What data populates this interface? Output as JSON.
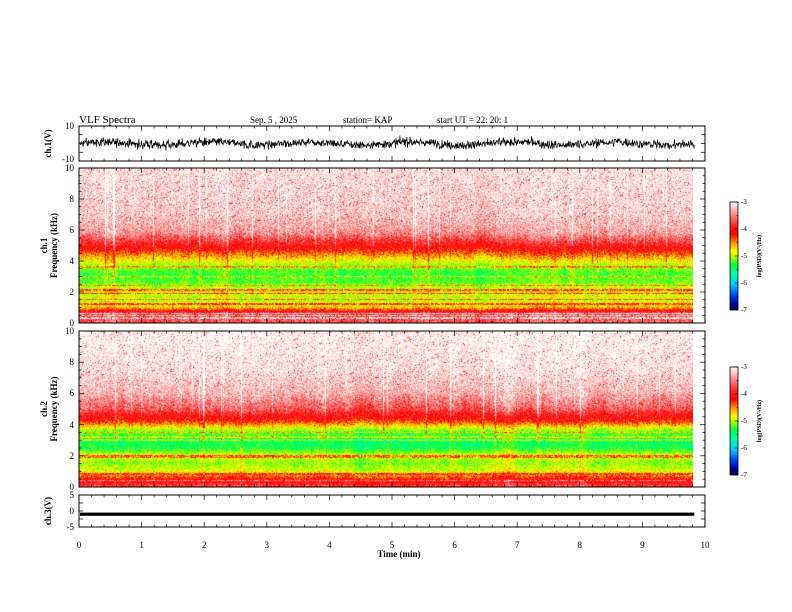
{
  "header": {
    "title": "VLF Spectra",
    "date": "Sep. 5 , 2025",
    "station": "station= KAP",
    "start": "start  UT =   22: 20: 1"
  },
  "chart_data": [
    {
      "type": "line",
      "name": "ch1-waveform",
      "ylabel": "ch.1(V)",
      "ylim": [
        -10,
        10
      ],
      "ytick_labels": [
        "10",
        "-10"
      ],
      "xlim": [
        0,
        9.83
      ],
      "amplitude_band": [
        -4,
        4
      ]
    },
    {
      "type": "heatmap",
      "name": "ch1-spectrogram",
      "ylabel": "Frequency (kHz)",
      "channel_label": "ch.1",
      "ylim": [
        0,
        10
      ],
      "ytick_labels": [
        "0",
        "2",
        "4",
        "6",
        "8",
        "10"
      ],
      "xlim": [
        0,
        9.83
      ],
      "color_scale": [
        -7,
        -3
      ],
      "profile_freq_khz": [
        0,
        0.6,
        1.0,
        1.5,
        2.0,
        2.6,
        3.2,
        3.8,
        4.4,
        5.0,
        5.8,
        7.0,
        10
      ],
      "profile_logpsd": [
        -3.6,
        -3.7,
        -4.6,
        -4.9,
        -4.7,
        -5.1,
        -5.2,
        -4.9,
        -4.4,
        -3.9,
        -3.4,
        -3.2,
        -3.1
      ],
      "horizontal_lines_khz": [
        0.3,
        0.45,
        0.6,
        1.2,
        1.5,
        1.9,
        2.1,
        2.4,
        3.0,
        3.6
      ]
    },
    {
      "type": "heatmap",
      "name": "ch2-spectrogram",
      "ylabel": "Frequency (kHz)",
      "channel_label": "ch.2",
      "ylim": [
        0,
        10
      ],
      "ytick_labels": [
        "0",
        "2",
        "4",
        "6",
        "8",
        "10"
      ],
      "xlim": [
        0,
        9.83
      ],
      "color_scale": [
        -7,
        -3
      ],
      "profile_freq_khz": [
        0,
        0.5,
        1.0,
        1.5,
        2.0,
        2.5,
        3.0,
        3.6,
        4.2,
        5.0,
        6.0,
        7.5,
        10
      ],
      "profile_logpsd": [
        -3.7,
        -4.1,
        -4.8,
        -5.0,
        -4.8,
        -5.3,
        -5.4,
        -5.0,
        -4.2,
        -3.6,
        -3.3,
        -3.1,
        -3.0
      ],
      "horizontal_lines_khz": [
        0.4,
        0.8,
        1.9,
        2.0,
        3.0,
        3.2,
        3.5
      ]
    },
    {
      "type": "line",
      "name": "ch3-waveform",
      "ylabel": "ch.3(V)",
      "ylim": [
        -5,
        5
      ],
      "ytick_labels": [
        "5",
        "0",
        "-5"
      ],
      "xlim": [
        0,
        9.83
      ],
      "constant_level": -1.0,
      "band_half_width": 0.5
    }
  ],
  "colorbars": [
    {
      "label": "log(PSD)(V²/Hz)",
      "tick_labels": [
        "-3",
        "-4",
        "-5",
        "-6",
        "-7"
      ],
      "range": [
        -7,
        -3
      ]
    },
    {
      "label": "log(PSD)(V²/Hz)",
      "tick_labels": [
        "-3",
        "-4",
        "-5",
        "-6",
        "-7"
      ],
      "range": [
        -7,
        -3
      ]
    }
  ],
  "time_axis": {
    "xlabel": "Time (min)",
    "range": [
      0,
      10
    ],
    "tick_labels": [
      "0",
      "1",
      "2",
      "3",
      "4",
      "5",
      "6",
      "7",
      "8",
      "9",
      "10"
    ]
  }
}
